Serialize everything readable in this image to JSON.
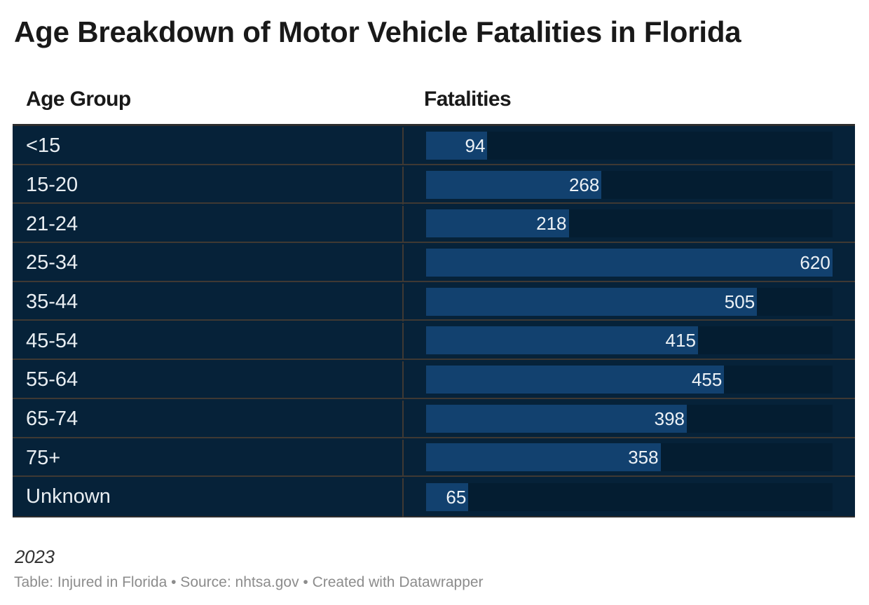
{
  "chart_data": {
    "type": "bar",
    "orientation": "horizontal",
    "title": "Age Breakdown of Motor Vehicle Fatalities in Florida",
    "columns": [
      "Age Group",
      "Fatalities"
    ],
    "categories": [
      "<15",
      "15-20",
      "21-24",
      "25-34",
      "35-44",
      "45-54",
      "55-64",
      "65-74",
      "75+",
      "Unknown"
    ],
    "values": [
      94,
      268,
      218,
      620,
      505,
      415,
      455,
      398,
      358,
      65
    ],
    "xlabel": "Fatalities",
    "ylabel": "Age Group",
    "xlim": [
      0,
      620
    ],
    "grid": false,
    "legend_position": "none",
    "value_labels": "inside-end",
    "note": "2023",
    "attribution": "Table: Injured in Florida • Source: nhtsa.gov • Created with Datawrapper"
  },
  "colors": {
    "page_background": "#ffffff",
    "title_text": "#191919",
    "row_background": "#062239",
    "bar_track": "#041d31",
    "bar_fill": "#12416f",
    "row_label_text": "#e9eef2",
    "bar_value_text": "#edf2f6",
    "row_separator": "#3f3933",
    "table_border": "#2d2d2d",
    "note_text": "#333333",
    "attribution_text": "#8c8c8c"
  }
}
